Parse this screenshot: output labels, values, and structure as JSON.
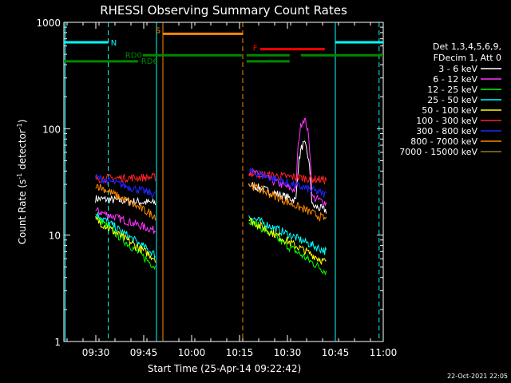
{
  "chart_data": {
    "type": "line",
    "title": "RHESSI Observing Summary Count Rates",
    "xlabel": "Start Time (25-Apr-14 09:22:42)",
    "ylabel_main": "Count Rate (s",
    "ylabel_sup1": "-1",
    "ylabel_mid": " detector",
    "ylabel_sup2": "-1",
    "ylabel_end": ")",
    "y_scale": "log",
    "ylim": [
      1,
      1000
    ],
    "y_ticks": [
      "1",
      "10",
      "100",
      "1000"
    ],
    "x_range_minutes": [
      -2.7,
      97.3
    ],
    "x_ticks": [
      {
        "label": "09:30",
        "min": 7.3
      },
      {
        "label": "09:45",
        "min": 22.3
      },
      {
        "label": "10:00",
        "min": 37.3
      },
      {
        "label": "10:15",
        "min": 52.3
      },
      {
        "label": "10:30",
        "min": 67.3
      },
      {
        "label": "10:45",
        "min": 82.3
      },
      {
        "label": "11:00",
        "min": 97.3
      }
    ],
    "legend_title_1": "Det 1,3,4,5,6,9,",
    "legend_title_2": "FDecim 1, Att 0",
    "legend_placement": "right",
    "timestamp": "22-Oct-2021 22:05",
    "series": [
      {
        "name": "3 - 6 keV",
        "color": "#ffffff",
        "seg1_start": 22,
        "seg1_end": 20,
        "seg2_start": 30,
        "seg2_end": 17,
        "peak": 60
      },
      {
        "name": "6 - 12 keV",
        "color": "#ff33ff",
        "seg1_start": 17,
        "seg1_end": 11,
        "seg2_start": 40,
        "seg2_end": 20,
        "peak": 100
      },
      {
        "name": "12 - 25 keV",
        "color": "#00ff00",
        "seg1_start": 15,
        "seg1_end": 5,
        "seg2_start": 14,
        "seg2_end": 4.5
      },
      {
        "name": "25 - 50 keV",
        "color": "#00ffff",
        "seg1_start": 16,
        "seg1_end": 6.5,
        "seg2_start": 15,
        "seg2_end": 7
      },
      {
        "name": "50 - 100 keV",
        "color": "#ffff00",
        "seg1_start": 14,
        "seg1_end": 6,
        "seg2_start": 14,
        "seg2_end": 5.5
      },
      {
        "name": "100 - 300 keV",
        "color": "#ff2222",
        "seg1_start": 34,
        "seg1_end": 35,
        "seg2_start": 38,
        "seg2_end": 33
      },
      {
        "name": "300 - 800 keV",
        "color": "#2222ff",
        "seg1_start": 35,
        "seg1_end": 24,
        "seg2_start": 40,
        "seg2_end": 24
      },
      {
        "name": "800 - 7000 keV",
        "color": "#ff8800",
        "seg1_start": 30,
        "seg1_end": 15,
        "seg2_start": 30,
        "seg2_end": 14
      },
      {
        "name": "7000 - 15000 keV",
        "color": "#997722",
        "seg1_start": 0,
        "seg1_end": 0,
        "seg2_start": 0,
        "seg2_end": 0
      }
    ],
    "observing_bars": [
      {
        "label": "N",
        "color": "#00ffff",
        "y_level": 650,
        "segments": [
          [
            -2.7,
            11.2
          ],
          [
            82.3,
            97.3
          ]
        ]
      },
      {
        "label": "S",
        "color": "#ff8800",
        "y_level": 780,
        "segments": [
          [
            28.3,
            53.3
          ]
        ]
      },
      {
        "label": "F",
        "color": "#ff0000",
        "y_level": 560,
        "segments": [
          [
            58.8,
            79
          ]
        ]
      },
      {
        "label": "RD0",
        "color": "#008800",
        "y_level": 490,
        "segments": [
          [
            22,
            53
          ],
          [
            54.5,
            68
          ],
          [
            71.5,
            97.3
          ]
        ]
      },
      {
        "label": "RD6",
        "color": "#008800",
        "y_level": 430,
        "segments": [
          [
            -2.7,
            20.5
          ],
          [
            54.5,
            68
          ]
        ]
      }
    ],
    "vlines": [
      {
        "min": -2.3,
        "color": "#00ffff",
        "dash": false
      },
      {
        "min": 11.2,
        "color": "#00ffff",
        "dash": true
      },
      {
        "min": 26.3,
        "color": "#00ffff",
        "dash": false
      },
      {
        "min": 28.3,
        "color": "#ff8800",
        "dash": false
      },
      {
        "min": 53.3,
        "color": "#ff8800",
        "dash": true
      },
      {
        "min": 82.3,
        "color": "#00ffff",
        "dash": false
      },
      {
        "min": 96,
        "color": "#00ffff",
        "dash": true
      }
    ],
    "data_segments": [
      [
        7.2,
        26.0
      ],
      [
        55.2,
        79.5
      ]
    ]
  }
}
